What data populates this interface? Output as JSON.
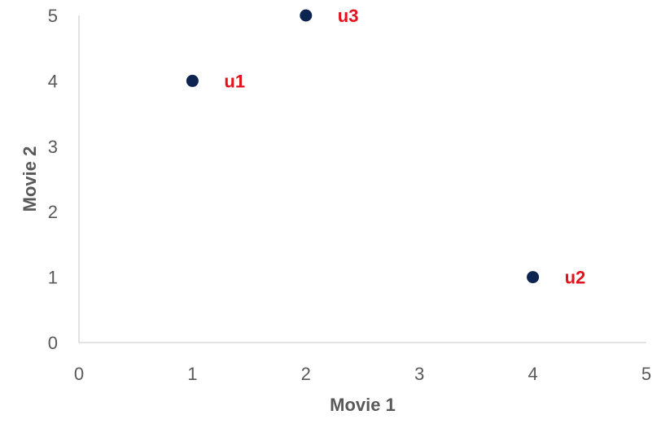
{
  "chart_data": {
    "type": "scatter",
    "title": "",
    "xlabel": "Movie 1",
    "ylabel": "Movie 2",
    "xlim": [
      0,
      5
    ],
    "ylim": [
      0,
      5
    ],
    "xticks": [
      "0",
      "1",
      "2",
      "3",
      "4",
      "5"
    ],
    "yticks": [
      "0",
      "1",
      "2",
      "3",
      "4",
      "5"
    ],
    "grid": false,
    "legend": "none",
    "marker_color": "#0d2451",
    "label_color": "#e3121c",
    "points": [
      {
        "label": "u1",
        "x": 1,
        "y": 4
      },
      {
        "label": "u2",
        "x": 4,
        "y": 1
      },
      {
        "label": "u3",
        "x": 2,
        "y": 5
      }
    ]
  }
}
